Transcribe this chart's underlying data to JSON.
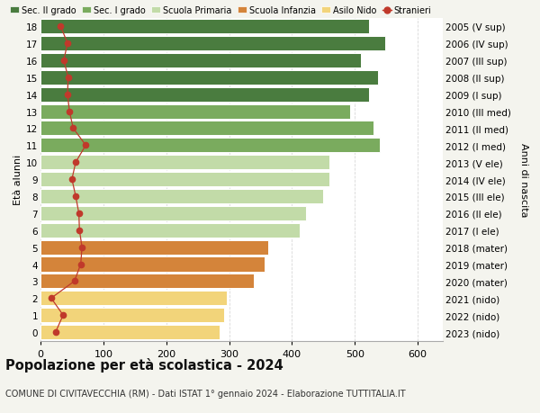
{
  "ages": [
    18,
    17,
    16,
    15,
    14,
    13,
    12,
    11,
    10,
    9,
    8,
    7,
    6,
    5,
    4,
    3,
    2,
    1,
    0
  ],
  "bar_values": [
    522,
    548,
    510,
    537,
    522,
    492,
    530,
    540,
    460,
    460,
    450,
    422,
    412,
    362,
    356,
    340,
    296,
    292,
    285
  ],
  "stranieri": [
    32,
    43,
    37,
    44,
    43,
    46,
    52,
    72,
    56,
    50,
    56,
    61,
    62,
    66,
    64,
    54,
    17,
    36,
    24
  ],
  "right_labels": [
    "2005 (V sup)",
    "2006 (IV sup)",
    "2007 (III sup)",
    "2008 (II sup)",
    "2009 (I sup)",
    "2010 (III med)",
    "2011 (II med)",
    "2012 (I med)",
    "2013 (V ele)",
    "2014 (IV ele)",
    "2015 (III ele)",
    "2016 (II ele)",
    "2017 (I ele)",
    "2018 (mater)",
    "2019 (mater)",
    "2020 (mater)",
    "2021 (nido)",
    "2022 (nido)",
    "2023 (nido)"
  ],
  "bar_colors": [
    "#4a7c3f",
    "#4a7c3f",
    "#4a7c3f",
    "#4a7c3f",
    "#4a7c3f",
    "#7aab5e",
    "#7aab5e",
    "#7aab5e",
    "#c2dba8",
    "#c2dba8",
    "#c2dba8",
    "#c2dba8",
    "#c2dba8",
    "#d4843a",
    "#d4843a",
    "#d4843a",
    "#f2d47a",
    "#f2d47a",
    "#f2d47a"
  ],
  "legend_labels": [
    "Sec. II grado",
    "Sec. I grado",
    "Scuola Primaria",
    "Scuola Infanzia",
    "Asilo Nido",
    "Stranieri"
  ],
  "legend_colors": [
    "#4a7c3f",
    "#7aab5e",
    "#c2dba8",
    "#d4843a",
    "#f2d47a",
    "#c0392b"
  ],
  "title": "Popolazione per età scolastica - 2024",
  "subtitle": "COMUNE DI CIVITAVECCHIA (RM) - Dati ISTAT 1° gennaio 2024 - Elaborazione TUTTITALIA.IT",
  "ylabel_left": "Età alunni",
  "ylabel_right": "Anni di nascita",
  "xlim": [
    0,
    640
  ],
  "ylim": [
    -0.5,
    18.5
  ],
  "xticks": [
    0,
    100,
    200,
    300,
    400,
    500,
    600
  ],
  "background_color": "#f4f4ee",
  "plot_bg_color": "#ffffff",
  "grid_color": "#d8d8d8",
  "stranieri_color": "#c0392b"
}
